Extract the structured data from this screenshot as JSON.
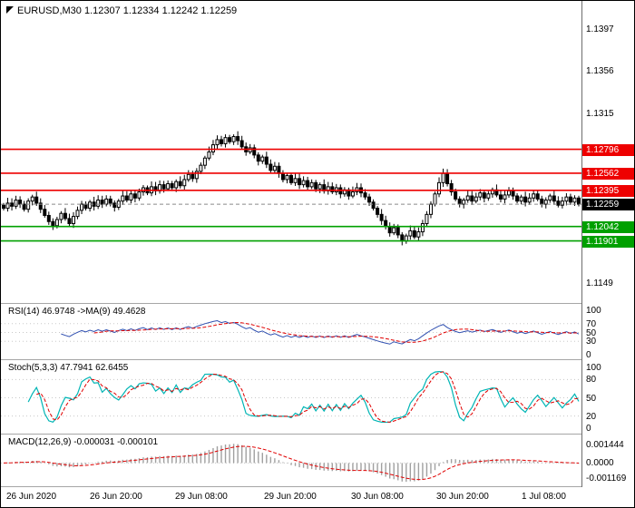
{
  "header": {
    "text": "EURUSD,M30 1.12307 1.12334 1.12242 1.12259"
  },
  "colors": {
    "background": "#ffffff",
    "border": "#000000",
    "candle": "#000000",
    "bull_fill": "#ffffff",
    "bear_fill": "#000000",
    "resistance": "#ee0000",
    "support": "#00a000",
    "current_bg": "#000000",
    "label_text": "#ffffff",
    "rsi_line": "#3050b0",
    "stoch_main": "#00b5b5",
    "signal": "#e00000",
    "macd_hist": "#a0a0a0",
    "grid_dotted": "#c8c8c8"
  },
  "chart_data": [
    {
      "type": "candlestick",
      "symbol": "EURUSD",
      "timeframe": "M30",
      "ohlc_header": {
        "open": "1.12307",
        "high": "1.12334",
        "low": "1.12242",
        "close": "1.12259"
      },
      "x_labels": [
        "26 Jun 2020",
        "26 Jun 20:00",
        "29 Jun 08:00",
        "29 Jun 20:00",
        "30 Jun 08:00",
        "30 Jun 20:00",
        "1 Jul 08:00"
      ],
      "y_ticks": [
        "1.1397",
        "1.1356",
        "1.1315",
        "1.1149"
      ],
      "levels": [
        {
          "price": 1.12796,
          "label": "1.12796",
          "type": "resistance"
        },
        {
          "price": 1.12562,
          "label": "1.12562",
          "type": "resistance"
        },
        {
          "price": 1.12395,
          "label": "1.12395",
          "type": "resistance"
        },
        {
          "price": 1.12259,
          "label": "1.12259",
          "type": "current"
        },
        {
          "price": 1.12042,
          "label": "1.12042",
          "type": "support"
        },
        {
          "price": 1.11901,
          "label": "1.11901",
          "type": "support"
        }
      ],
      "closes": [
        1.1222,
        1.1227,
        1.1224,
        1.123,
        1.1226,
        1.1221,
        1.1229,
        1.1233,
        1.1227,
        1.1221,
        1.1215,
        1.1209,
        1.1205,
        1.1211,
        1.1217,
        1.1212,
        1.1207,
        1.1214,
        1.122,
        1.1226,
        1.1222,
        1.1228,
        1.1224,
        1.123,
        1.1226,
        1.1231,
        1.1227,
        1.1223,
        1.1229,
        1.1234,
        1.123,
        1.1236,
        1.1232,
        1.1238,
        1.1242,
        1.1237,
        1.1243,
        1.1239,
        1.1245,
        1.1241,
        1.1246,
        1.1242,
        1.1248,
        1.1244,
        1.125,
        1.1255,
        1.1251,
        1.1258,
        1.1264,
        1.1271,
        1.1277,
        1.1284,
        1.1289,
        1.1285,
        1.1291,
        1.1287,
        1.1292,
        1.1288,
        1.1282,
        1.1277,
        1.1281,
        1.1274,
        1.1268,
        1.1272,
        1.1265,
        1.1259,
        1.1263,
        1.1256,
        1.125,
        1.1254,
        1.1247,
        1.1251,
        1.1245,
        1.1249,
        1.1243,
        1.1247,
        1.1241,
        1.1245,
        1.1239,
        1.1243,
        1.1238,
        1.1242,
        1.1236,
        1.124,
        1.1234,
        1.1238,
        1.1242,
        1.1237,
        1.1233,
        1.1228,
        1.1222,
        1.1216,
        1.121,
        1.1204,
        1.1198,
        1.1203,
        1.1196,
        1.119,
        1.1195,
        1.12,
        1.1194,
        1.1199,
        1.1207,
        1.1216,
        1.1226,
        1.1236,
        1.1247,
        1.1256,
        1.1246,
        1.1238,
        1.1231,
        1.1226,
        1.123,
        1.1234,
        1.1229,
        1.1233,
        1.1237,
        1.1232,
        1.1236,
        1.124,
        1.1235,
        1.1231,
        1.1235,
        1.1239,
        1.1234,
        1.1229,
        1.1233,
        1.1228,
        1.1232,
        1.1236,
        1.1231,
        1.1226,
        1.123,
        1.1234,
        1.1229,
        1.1225,
        1.1229,
        1.1233,
        1.1228,
        1.1232,
        1.1226
      ]
    },
    {
      "type": "line",
      "indicator": "RSI",
      "label": "RSI(14) 46.9748 ->MA(9) 49.4628",
      "period": 14,
      "ma_period": 9,
      "current": 46.9748,
      "ma_current": 49.4628,
      "y_ticks": [
        100,
        70,
        50,
        30,
        0
      ]
    },
    {
      "type": "line",
      "indicator": "Stochastic",
      "label": "Stoch(5,3,3) 47.7941 62.6455",
      "k_period": 5,
      "d_period": 3,
      "slowing": 3,
      "k_current": 47.7941,
      "d_current": 62.6455,
      "y_ticks": [
        100,
        80,
        50,
        20,
        0
      ]
    },
    {
      "type": "macd",
      "indicator": "MACD",
      "label": "MACD(12,26,9) -0.000031 -0.000101",
      "fast": 12,
      "slow": 26,
      "signal_period": 9,
      "macd_current": -3.1e-05,
      "signal_current": -0.000101,
      "y_ticks": [
        "0.001444",
        "0.0000",
        "-0.001169"
      ]
    }
  ]
}
